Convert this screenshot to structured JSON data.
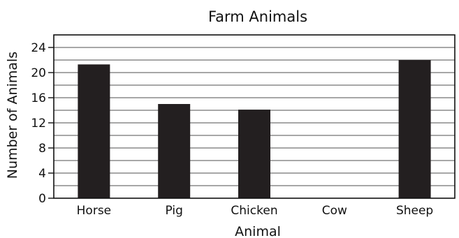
{
  "chart_data": {
    "type": "bar",
    "title": "Farm Animals",
    "xlabel": "Animal",
    "ylabel": "Number of Animals",
    "categories": [
      "Horse",
      "Pig",
      "Chicken",
      "Cow",
      "Sheep"
    ],
    "values": [
      21.3,
      15,
      14.1,
      0,
      22
    ],
    "ylim": [
      0,
      26
    ],
    "yticks": [
      0,
      4,
      8,
      12,
      16,
      20,
      24
    ],
    "minor_step": 2,
    "grid": true,
    "bar_color": "#231f20",
    "grid_color": "#8a8a8a"
  }
}
